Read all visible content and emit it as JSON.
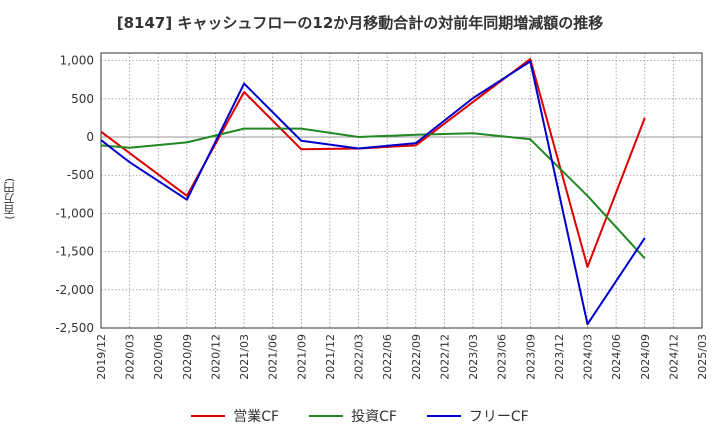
{
  "chart_data": {
    "type": "line",
    "title": "[8147]  キャッシュフローの12か月移動合計の対前年同期増減額の推移",
    "ylabel": "(百万円)",
    "xlabel": "",
    "x_ticks": [
      "2019/12",
      "2020/03",
      "2020/06",
      "2020/09",
      "2020/12",
      "2021/03",
      "2021/06",
      "2021/09",
      "2021/12",
      "2022/03",
      "2022/06",
      "2022/09",
      "2022/12",
      "2023/03",
      "2023/06",
      "2023/09",
      "2023/12",
      "2024/03",
      "2024/06",
      "2024/09",
      "2024/12",
      "2025/03"
    ],
    "y_ticks": [
      1000,
      500,
      0,
      -500,
      -1000,
      -1500,
      -2000,
      -2500
    ],
    "y_tick_labels": [
      "1,000",
      "500",
      "0",
      "-500",
      "-1,000",
      "-1,500",
      "-2,000",
      "-2,500"
    ],
    "ylim": [
      -2500,
      1100
    ],
    "grid": true,
    "legend_position": "bottom",
    "series": [
      {
        "name": "営業CF",
        "color": "#dd0000",
        "x": [
          "2019/12",
          "2020/09",
          "2021/03",
          "2021/09",
          "2022/03",
          "2022/09",
          "2023/03",
          "2023/09",
          "2024/03",
          "2024/09"
        ],
        "values": [
          70,
          -770,
          590,
          -160,
          -150,
          -110,
          460,
          1020,
          -1700,
          250
        ]
      },
      {
        "name": "投資CF",
        "color": "#228822",
        "x": [
          "2019/12",
          "2020/03",
          "2020/09",
          "2021/03",
          "2021/09",
          "2022/03",
          "2022/09",
          "2023/03",
          "2023/09",
          "2024/03",
          "2024/09"
        ],
        "values": [
          -110,
          -140,
          -70,
          110,
          110,
          0,
          30,
          50,
          -30,
          -770,
          -1590
        ]
      },
      {
        "name": "フリーCF",
        "color": "#0000cc",
        "x": [
          "2019/12",
          "2020/03",
          "2020/09",
          "2021/03",
          "2021/09",
          "2022/03",
          "2022/09",
          "2023/03",
          "2023/09",
          "2024/03",
          "2024/09"
        ],
        "values": [
          -40,
          -330,
          -820,
          700,
          -50,
          -150,
          -80,
          510,
          990,
          -2450,
          -1320
        ]
      }
    ]
  }
}
